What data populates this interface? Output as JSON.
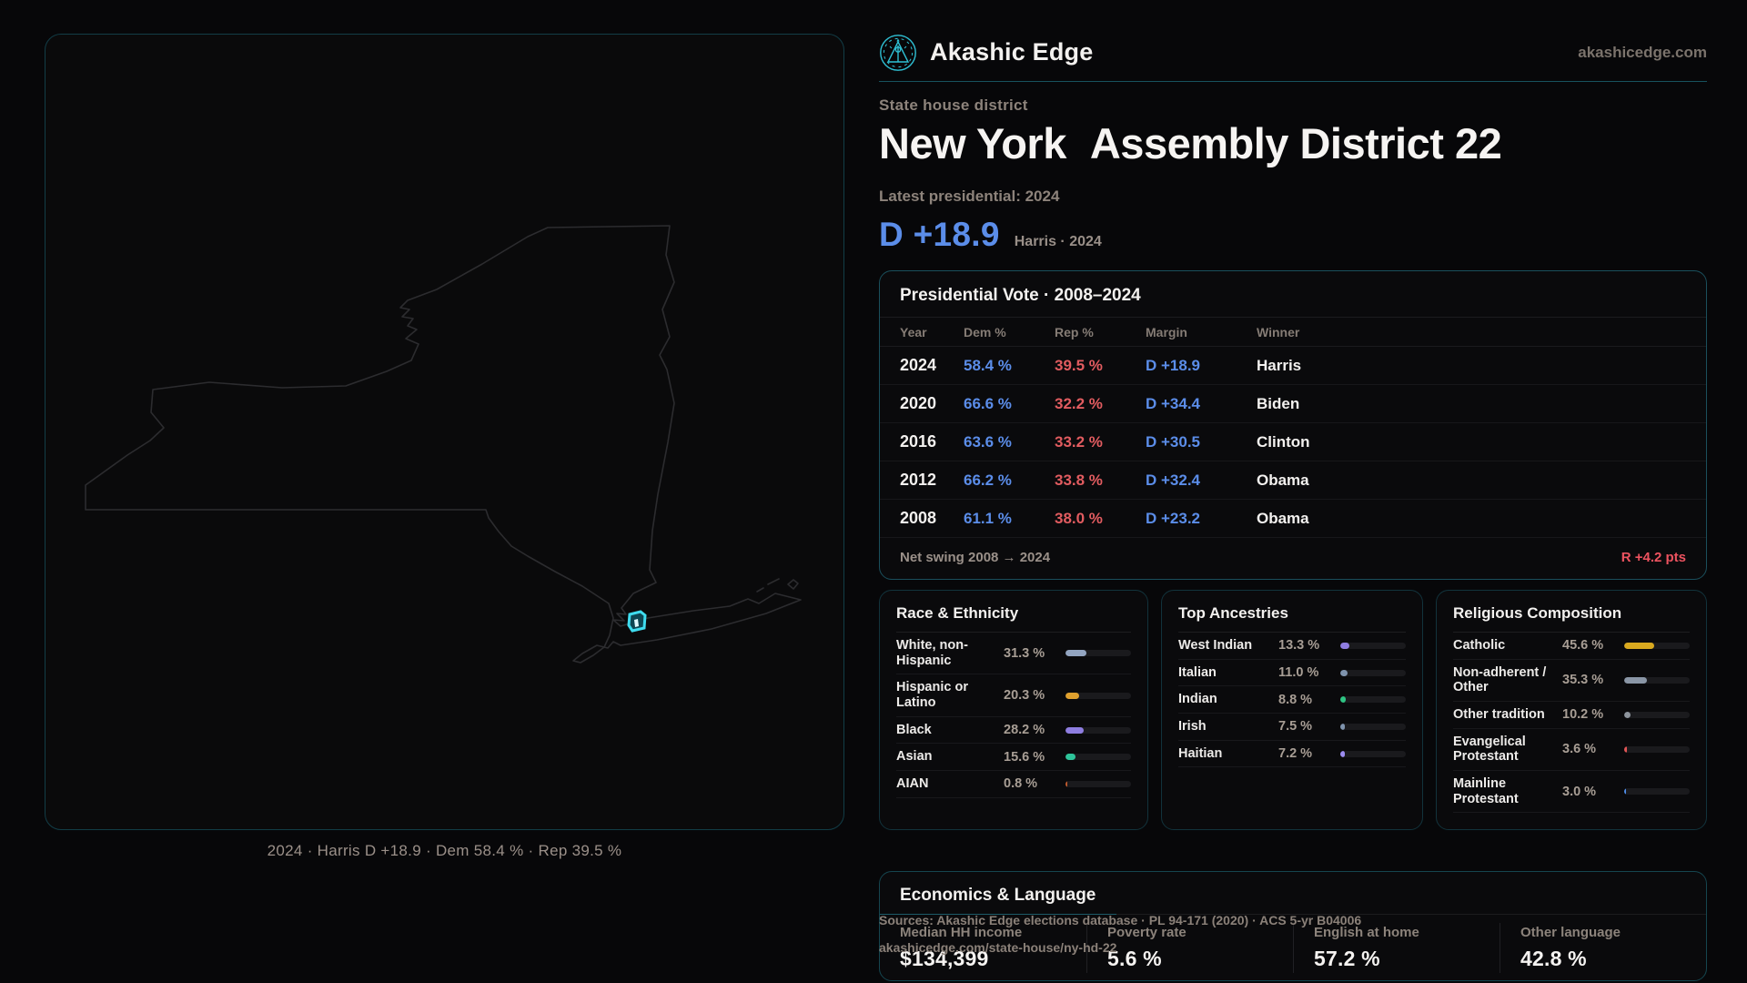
{
  "brand": {
    "name": "Akashic Edge",
    "domain": "akashicedge.com"
  },
  "header": {
    "kicker": "State house district",
    "title_part1": "New York",
    "title_part2": "Assembly District 22",
    "latest_label": "Latest presidential: 2024",
    "margin_big": "D +18.9",
    "margin_caption": "Harris · 2024"
  },
  "map": {
    "caption": "2024 · Harris D +18.9 · Dem 58.4 % · Rep 39.5 %"
  },
  "presidential": {
    "title": "Presidential Vote · 2008–2024",
    "columns": [
      "Year",
      "Dem %",
      "Rep %",
      "Margin",
      "Winner"
    ],
    "rows": [
      {
        "year": "2024",
        "dem": "58.4 %",
        "rep": "39.5 %",
        "margin": "D +18.9",
        "winner": "Harris"
      },
      {
        "year": "2020",
        "dem": "66.6 %",
        "rep": "32.2 %",
        "margin": "D +34.4",
        "winner": "Biden"
      },
      {
        "year": "2016",
        "dem": "63.6 %",
        "rep": "33.2 %",
        "margin": "D +30.5",
        "winner": "Clinton"
      },
      {
        "year": "2012",
        "dem": "66.2 %",
        "rep": "33.8 %",
        "margin": "D +32.4",
        "winner": "Obama"
      },
      {
        "year": "2008",
        "dem": "61.1 %",
        "rep": "38.0 %",
        "margin": "D +23.2",
        "winner": "Obama"
      }
    ],
    "net_swing_label": "Net swing 2008 → 2024",
    "net_swing_value": "R +4.2 pts"
  },
  "race": {
    "title": "Race & Ethnicity",
    "rows": [
      {
        "label": "White, non-Hispanic",
        "value": "31.3 %",
        "pct": 31.3,
        "color": "#93a5c1"
      },
      {
        "label": "Hispanic or Latino",
        "value": "20.3 %",
        "pct": 20.3,
        "color": "#dfa02e"
      },
      {
        "label": "Black",
        "value": "28.2 %",
        "pct": 28.2,
        "color": "#8e7de0"
      },
      {
        "label": "Asian",
        "value": "15.6 %",
        "pct": 15.6,
        "color": "#2ec49a"
      },
      {
        "label": "AIAN",
        "value": "0.8 %",
        "pct": 0.8,
        "color": "#c05a2e"
      }
    ]
  },
  "ancestries": {
    "title": "Top Ancestries",
    "rows": [
      {
        "label": "West Indian",
        "value": "13.3 %",
        "pct": 13.3,
        "color": "#8f7de0"
      },
      {
        "label": "Italian",
        "value": "11.0 %",
        "pct": 11.0,
        "color": "#7f93ad"
      },
      {
        "label": "Indian",
        "value": "8.8 %",
        "pct": 8.8,
        "color": "#2ec483"
      },
      {
        "label": "Irish",
        "value": "7.5 %",
        "pct": 7.5,
        "color": "#7f93ad"
      },
      {
        "label": "Haitian",
        "value": "7.2 %",
        "pct": 7.2,
        "color": "#9c8cf0"
      }
    ]
  },
  "religion": {
    "title": "Religious Composition",
    "rows": [
      {
        "label": "Catholic",
        "value": "45.6 %",
        "pct": 45.6,
        "color": "#d9a91f"
      },
      {
        "label": "Non-adherent / Other",
        "value": "35.3 %",
        "pct": 35.3,
        "color": "#8a96a6"
      },
      {
        "label": "Other tradition",
        "value": "10.2 %",
        "pct": 10.2,
        "color": "#8d949c"
      },
      {
        "label": "Evangelical Protestant",
        "value": "3.6 %",
        "pct": 3.6,
        "color": "#e05555"
      },
      {
        "label": "Mainline Protestant",
        "value": "3.0 %",
        "pct": 3.0,
        "color": "#4e8ce8"
      }
    ]
  },
  "economics": {
    "title": "Economics & Language",
    "stats": [
      {
        "label": "Median HH income",
        "value": "$134,399"
      },
      {
        "label": "Poverty rate",
        "value": "5.6 %"
      },
      {
        "label": "English at home",
        "value": "57.2 %"
      },
      {
        "label": "Other language",
        "value": "42.8 %"
      }
    ]
  },
  "footer": {
    "line1": "Sources: Akashic Edge elections database · PL 94-171 (2020) · ACS 5-yr B04006",
    "line2": "akashicedge.com/state-house/ny-hd-22"
  },
  "colors": {
    "accent_teal": "#2fc0d4",
    "dem_blue": "#5b8de9",
    "rep_red": "#e25c60",
    "swing_red": "#ee5360",
    "marker_cyan": "#3fdcef"
  }
}
